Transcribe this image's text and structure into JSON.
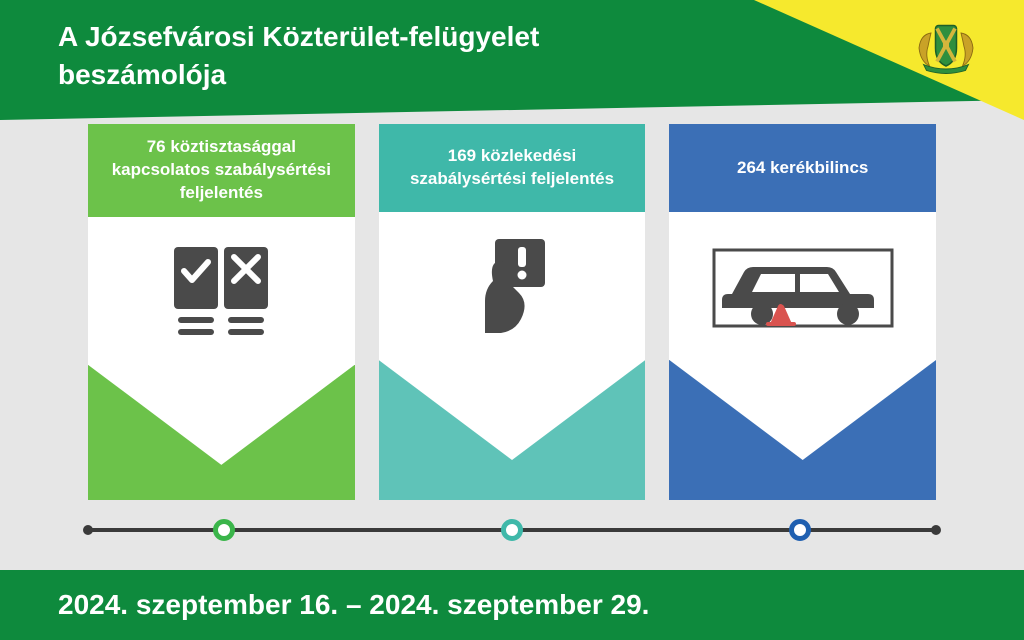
{
  "colors": {
    "header_green": "#0e8a3d",
    "corner_yellow": "#f6e92d",
    "background": "#e6e6e6",
    "icon_gray": "#4a4a4a",
    "timeline_gray": "#3a3a3a",
    "white": "#ffffff"
  },
  "header": {
    "title_line1": "A Józsefvárosi Közterület-felügyelet",
    "title_line2": "beszámolója"
  },
  "footer": {
    "date_range": "2024. szeptember 16. – 2024. szeptember 29."
  },
  "cards": [
    {
      "label": "76 köztisztasággal kapcsolatos szabálysértési feljelentés",
      "header_color": "#6cc24a",
      "envelope_color": "#6cc24a",
      "dot_color": "#3ab54a"
    },
    {
      "label": "169 közlekedési szabálysértési feljelentés",
      "header_color": "#3fb8a9",
      "envelope_color": "#5fc3b8",
      "dot_color": "#3fb8a9"
    },
    {
      "label": "264 kerékbilincs",
      "header_color": "#3b6fb6",
      "envelope_color": "#3b6fb6",
      "dot_color": "#1f5fb0"
    }
  ],
  "timeline": {
    "dot_positions_pct": [
      16,
      50,
      84
    ]
  }
}
